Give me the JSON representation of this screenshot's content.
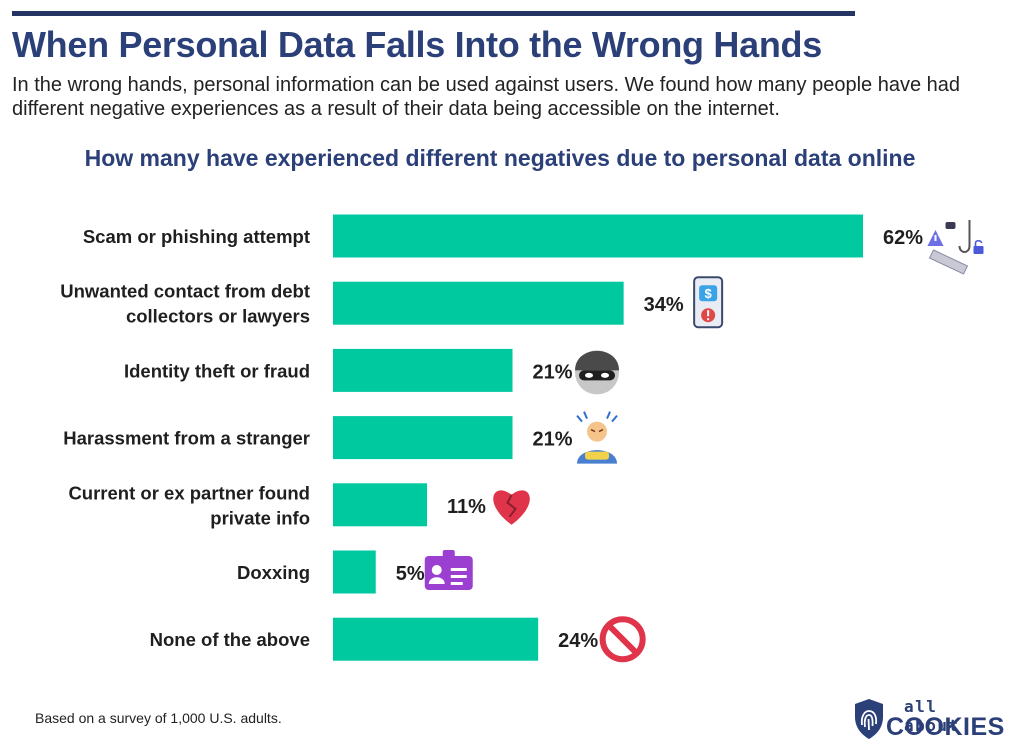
{
  "header": {
    "title": "When Personal Data Falls Into the Wrong Hands",
    "subtitle": "In the wrong hands, personal information can be used against users. We found how many people have had different negative experiences as a result of their data being accessible on the internet."
  },
  "chart_data": {
    "type": "bar",
    "orientation": "horizontal",
    "title": "How many have experienced different negatives due to personal data online",
    "categories": [
      "Scam or phishing attempt",
      "Unwanted contact from debt collectors or lawyers",
      "Identity theft or fraud",
      "Harassment from a stranger",
      "Current or ex partner found private info",
      "Doxxing",
      "None of the above"
    ],
    "category_lines": [
      [
        "Scam or phishing attempt"
      ],
      [
        "Unwanted contact from debt",
        "collectors or lawyers"
      ],
      [
        "Identity theft or fraud"
      ],
      [
        "Harassment from a stranger"
      ],
      [
        "Current or ex partner found",
        "private info"
      ],
      [
        "Doxxing"
      ],
      [
        "None of the above"
      ]
    ],
    "values": [
      62,
      34,
      21,
      21,
      11,
      5,
      24
    ],
    "value_labels": [
      "62%",
      "34%",
      "21%",
      "21%",
      "11%",
      "5%",
      "24%"
    ],
    "icons": [
      "phishing-hook-icon",
      "debt-phone-icon",
      "masked-thief-icon",
      "angry-person-icon",
      "broken-heart-icon",
      "id-card-icon",
      "prohibited-icon"
    ],
    "unit": "%",
    "xlim": [
      0,
      62
    ],
    "bar_color": "#00c9a0",
    "grid": false,
    "legend": "none"
  },
  "footer": {
    "note": "Based on a survey of 1,000 U.S. adults.",
    "logo_top": "all about",
    "logo_bottom": "COOKIES"
  },
  "colors": {
    "title": "#2b3f78",
    "bar": "#00c9a0",
    "rule": "#243463"
  }
}
